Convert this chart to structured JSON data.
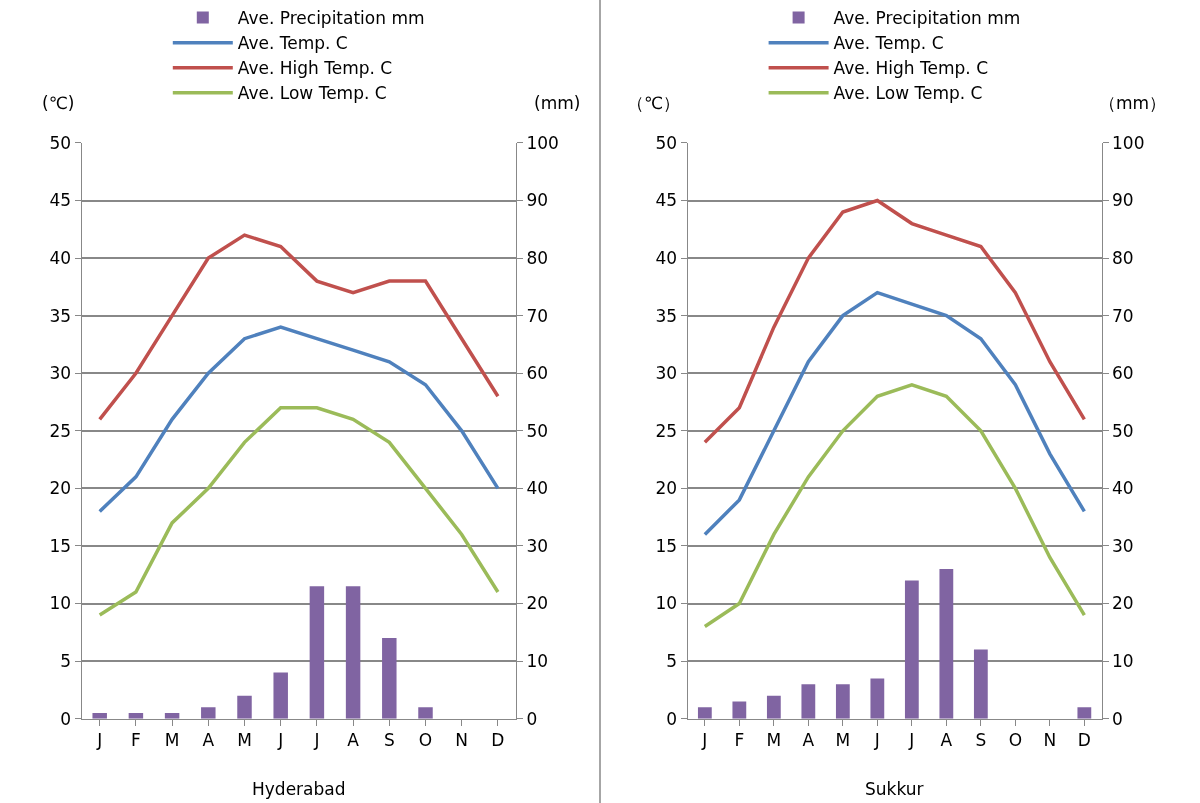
{
  "chart_data": [
    {
      "type": "line",
      "xlabel": "Hyderabad",
      "ylabel": "(℃)",
      "y2label": "(mm)",
      "categories": [
        "J",
        "F",
        "M",
        "A",
        "M",
        "J",
        "J",
        "A",
        "S",
        "O",
        "N",
        "D"
      ],
      "series": [
        {
          "name": "Ave. Precipitation mm",
          "type": "bar",
          "axis": "y2",
          "color": "#8064a2",
          "values": [
            1,
            1,
            1,
            2,
            4,
            8,
            23,
            23,
            14,
            2,
            0,
            0
          ]
        },
        {
          "name": "Ave. Temp. C",
          "color": "#4f81bd",
          "values": [
            18,
            21,
            26,
            30,
            33,
            34,
            33,
            32,
            31,
            29,
            25,
            20
          ]
        },
        {
          "name": "Ave. High Temp. C",
          "color": "#c0504d",
          "values": [
            26,
            30,
            35,
            40,
            42,
            41,
            38,
            37,
            38,
            38,
            33,
            28
          ]
        },
        {
          "name": "Ave. Low Temp. C",
          "color": "#9bbb59",
          "values": [
            9,
            11,
            17,
            20,
            24,
            27,
            27,
            26,
            24,
            20,
            16,
            11
          ]
        }
      ],
      "ylim": [
        0,
        50
      ],
      "yticks": [
        0,
        5,
        10,
        15,
        20,
        25,
        30,
        35,
        40,
        45,
        50
      ],
      "y2lim": [
        0,
        100
      ],
      "y2ticks": [
        0,
        10,
        20,
        30,
        40,
        50,
        60,
        70,
        80,
        90,
        100
      ],
      "grid": "y",
      "legend": "top",
      "marker": "none",
      "line_style": "solid"
    },
    {
      "type": "line",
      "xlabel": "Sukkur",
      "ylabel": "（℃）",
      "y2label": "（mm）",
      "categories": [
        "J",
        "F",
        "M",
        "A",
        "M",
        "J",
        "J",
        "A",
        "S",
        "O",
        "N",
        "D"
      ],
      "series": [
        {
          "name": "Ave. Precipitation mm",
          "type": "bar",
          "axis": "y2",
          "color": "#8064a2",
          "values": [
            2,
            3,
            4,
            6,
            6,
            7,
            24,
            26,
            12,
            0,
            0,
            2
          ]
        },
        {
          "name": "Ave. Temp. C",
          "color": "#4f81bd",
          "values": [
            16,
            19,
            25,
            31,
            35,
            37,
            36,
            35,
            33,
            29,
            23,
            18
          ]
        },
        {
          "name": "Ave. High Temp. C",
          "color": "#c0504d",
          "values": [
            24,
            27,
            34,
            40,
            44,
            45,
            43,
            42,
            41,
            37,
            31,
            26
          ]
        },
        {
          "name": "Ave. Low Temp. C",
          "color": "#9bbb59",
          "values": [
            8,
            10,
            16,
            21,
            25,
            28,
            29,
            28,
            25,
            20,
            14,
            9
          ]
        }
      ],
      "ylim": [
        0,
        50
      ],
      "yticks": [
        0,
        5,
        10,
        15,
        20,
        25,
        30,
        35,
        40,
        45,
        50
      ],
      "y2lim": [
        0,
        100
      ],
      "y2ticks": [
        0,
        10,
        20,
        30,
        40,
        50,
        60,
        70,
        80,
        90,
        100
      ],
      "grid": "y",
      "legend": "top",
      "marker": "none",
      "line_style": "solid"
    }
  ]
}
